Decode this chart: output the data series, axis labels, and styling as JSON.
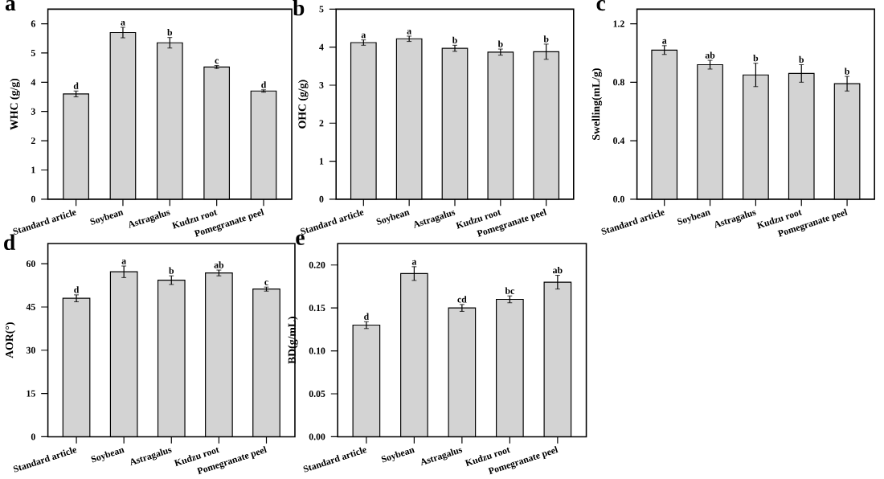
{
  "chart_data": [
    {
      "type": "bar",
      "title": "a",
      "ylabel": "WHC (g/g)",
      "categories": [
        "Standard article",
        "Soybean",
        "Astragalus",
        "Kudzu root",
        "Pomegranate peel"
      ],
      "values": [
        3.6,
        5.7,
        5.35,
        4.52,
        3.7
      ],
      "errors": [
        0.1,
        0.18,
        0.18,
        0.05,
        0.04
      ],
      "color": "#d3d3d3",
      "ylim": [
        0,
        6.5
      ],
      "yticks": [
        0,
        1,
        2,
        3,
        4,
        5,
        6
      ],
      "annotations": [
        {
          "text": "d",
          "x": "Standard article",
          "y": 3.7
        },
        {
          "text": "a",
          "x": "Soybean",
          "y": 5.88
        },
        {
          "text": "b",
          "x": "Astragalus",
          "y": 5.53
        },
        {
          "text": "c",
          "x": "Kudzu root",
          "y": 4.57
        },
        {
          "text": "d",
          "x": "Pomegranate peel",
          "y": 3.74
        }
      ]
    },
    {
      "type": "bar",
      "title": "b",
      "ylabel": "OHC (g/g)",
      "categories": [
        "Standard article",
        "Soybean",
        "Astragalus",
        "Kudzu root",
        "Pomegranate peel"
      ],
      "values": [
        4.12,
        4.22,
        3.97,
        3.87,
        3.88
      ],
      "errors": [
        0.07,
        0.07,
        0.08,
        0.08,
        0.2
      ],
      "color": "#d3d3d3",
      "ylim": [
        0,
        5
      ],
      "yticks": [
        0,
        1,
        2,
        3,
        4,
        5
      ],
      "annotations": [
        {
          "text": "a",
          "x": "Standard article",
          "y": 4.19
        },
        {
          "text": "a",
          "x": "Soybean",
          "y": 4.29
        },
        {
          "text": "b",
          "x": "Astragalus",
          "y": 4.05
        },
        {
          "text": "b",
          "x": "Kudzu root",
          "y": 3.95
        },
        {
          "text": "b",
          "x": "Pomegranate peel",
          "y": 4.08
        }
      ]
    },
    {
      "type": "bar",
      "title": "c",
      "ylabel": "Swelling(mL/g)",
      "categories": [
        "Standard article",
        "Soybean",
        "Astragalus",
        "Kudzu root",
        "Pomegranate peel"
      ],
      "values": [
        1.02,
        0.92,
        0.85,
        0.86,
        0.79
      ],
      "errors": [
        0.03,
        0.03,
        0.08,
        0.06,
        0.05
      ],
      "color": "#d3d3d3",
      "ylim": [
        0,
        1.3
      ],
      "yticks": [
        {
          "value": 0,
          "label": "0.0"
        },
        0.4,
        0.8,
        1.2
      ],
      "annotations": [
        {
          "text": "a",
          "x": "Standard article",
          "y": 1.05
        },
        {
          "text": "ab",
          "x": "Soybean",
          "y": 0.95
        },
        {
          "text": "b",
          "x": "Astragalus",
          "y": 0.93
        },
        {
          "text": "b",
          "x": "Kudzu root",
          "y": 0.92
        },
        {
          "text": "b",
          "x": "Pomegranate peel",
          "y": 0.84
        }
      ]
    },
    {
      "type": "bar",
      "title": "d",
      "ylabel": "AOR(°)",
      "categories": [
        "Standard article",
        "Soybean",
        "Astragalus",
        "Kudzu root",
        "Pomegranate peel"
      ],
      "values": [
        48,
        57.2,
        54.3,
        56.8,
        51.2
      ],
      "errors": [
        1.2,
        2,
        1.5,
        1,
        0.7
      ],
      "color": "#d3d3d3",
      "ylim": [
        0,
        67
      ],
      "yticks": [
        0,
        15,
        30,
        45,
        60
      ],
      "annotations": [
        {
          "text": "d",
          "x": "Standard article",
          "y": 49.2
        },
        {
          "text": "a",
          "x": "Soybean",
          "y": 59.2
        },
        {
          "text": "b",
          "x": "Astragalus",
          "y": 55.8
        },
        {
          "text": "ab",
          "x": "Kudzu root",
          "y": 57.8
        },
        {
          "text": "c",
          "x": "Pomegranate peel",
          "y": 51.9
        }
      ]
    },
    {
      "type": "bar",
      "title": "e",
      "ylabel": "BD(g/mL)",
      "categories": [
        "Standard article",
        "Soybean",
        "Astragalus",
        "Kudzu root",
        "Pomegranate peel"
      ],
      "values": [
        0.13,
        0.19,
        0.15,
        0.16,
        0.18
      ],
      "errors": [
        0.004,
        0.008,
        0.004,
        0.004,
        0.008
      ],
      "color": "#d3d3d3",
      "ylim": [
        0,
        0.225
      ],
      "yticks": [
        {
          "value": 0,
          "label": "0.00"
        },
        0.05,
        {
          "value": 0.1,
          "label": "0.10"
        },
        0.15,
        {
          "value": 0.2,
          "label": "0.20"
        }
      ],
      "annotations": [
        {
          "text": "d",
          "x": "Standard article",
          "y": 0.134
        },
        {
          "text": "a",
          "x": "Soybean",
          "y": 0.198
        },
        {
          "text": "cd",
          "x": "Astragalus",
          "y": 0.154
        },
        {
          "text": "bc",
          "x": "Kudzu root",
          "y": 0.164
        },
        {
          "text": "ab",
          "x": "Pomegranate peel",
          "y": 0.188
        }
      ]
    }
  ]
}
